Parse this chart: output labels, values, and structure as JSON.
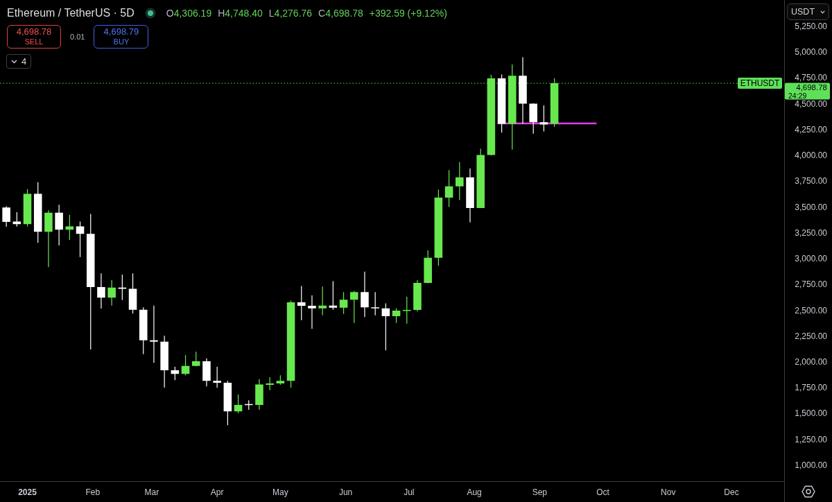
{
  "chart_data": {
    "type": "candlestick",
    "title": "Ethereum / TetherUS · 5D",
    "x": [
      "2024-12-22",
      "2024-12-27",
      "2025-01-01",
      "2025-01-06",
      "2025-01-11",
      "2025-01-16",
      "2025-01-21",
      "2025-01-26",
      "2025-01-31",
      "2025-02-05",
      "2025-02-10",
      "2025-02-15",
      "2025-02-20",
      "2025-02-25",
      "2025-03-02",
      "2025-03-07",
      "2025-03-12",
      "2025-03-17",
      "2025-03-22",
      "2025-03-27",
      "2025-04-01",
      "2025-04-06",
      "2025-04-11",
      "2025-04-16",
      "2025-04-21",
      "2025-04-26",
      "2025-05-01",
      "2025-05-06",
      "2025-05-11",
      "2025-05-16",
      "2025-05-21",
      "2025-05-26",
      "2025-05-31",
      "2025-06-05",
      "2025-06-10",
      "2025-06-15",
      "2025-06-20",
      "2025-06-25",
      "2025-06-30",
      "2025-07-05",
      "2025-07-10",
      "2025-07-15",
      "2025-07-20",
      "2025-07-25",
      "2025-07-30",
      "2025-08-04",
      "2025-08-09",
      "2025-08-14",
      "2025-08-19",
      "2025-08-24",
      "2025-08-29",
      "2025-09-03",
      "2025-09-08"
    ],
    "ohlc": [
      [
        3495,
        3508,
        3309,
        3356
      ],
      [
        3360,
        3450,
        3311,
        3334
      ],
      [
        3334,
        3673,
        3311,
        3629
      ],
      [
        3629,
        3740,
        3154,
        3260
      ],
      [
        3260,
        3468,
        2919,
        3445
      ],
      [
        3445,
        3523,
        3128,
        3280
      ],
      [
        3280,
        3423,
        3181,
        3313
      ],
      [
        3313,
        3360,
        3016,
        3240
      ],
      [
        3240,
        3434,
        2121,
        2725
      ],
      [
        2725,
        2857,
        2517,
        2622
      ],
      [
        2622,
        2792,
        2546,
        2720
      ],
      [
        2720,
        2846,
        2599,
        2709
      ],
      [
        2709,
        2857,
        2468,
        2505
      ],
      [
        2505,
        2528,
        2076,
        2210
      ],
      [
        2210,
        2546,
        1991,
        2197
      ],
      [
        2197,
        2253,
        1752,
        1919
      ],
      [
        1919,
        1953,
        1823,
        1884
      ],
      [
        1884,
        2065,
        1870,
        1962
      ],
      [
        1962,
        2099,
        1958,
        2007
      ],
      [
        2007,
        2036,
        1763,
        1817
      ],
      [
        1817,
        1953,
        1750,
        1799
      ],
      [
        1799,
        1817,
        1387,
        1521
      ],
      [
        1521,
        1685,
        1503,
        1584
      ],
      [
        1592,
        1629,
        1537,
        1583
      ],
      [
        1583,
        1834,
        1537,
        1781
      ],
      [
        1778,
        1852,
        1727,
        1792
      ],
      [
        1792,
        1870,
        1779,
        1817
      ],
      [
        1817,
        2595,
        1750,
        2577
      ],
      [
        2577,
        2736,
        2405,
        2544
      ],
      [
        2544,
        2644,
        2320,
        2519
      ],
      [
        2519,
        2730,
        2452,
        2546
      ],
      [
        2546,
        2783,
        2505,
        2526
      ],
      [
        2526,
        2676,
        2465,
        2602
      ],
      [
        2602,
        2689,
        2378,
        2676
      ],
      [
        2676,
        2874,
        2434,
        2528
      ],
      [
        2528,
        2676,
        2452,
        2519
      ],
      [
        2519,
        2568,
        2112,
        2443
      ],
      [
        2443,
        2521,
        2378,
        2497
      ],
      [
        2495,
        2631,
        2371,
        2503
      ],
      [
        2503,
        2792,
        2488,
        2765
      ],
      [
        2765,
        3081,
        2760,
        3009
      ],
      [
        3009,
        3669,
        2931,
        3591
      ],
      [
        3591,
        3859,
        3501,
        3700
      ],
      [
        3700,
        3935,
        3568,
        3787
      ],
      [
        3787,
        3874,
        3351,
        3490
      ],
      [
        3490,
        4065,
        3490,
        4005
      ],
      [
        4005,
        4781,
        4000,
        4747
      ],
      [
        4747,
        4783,
        4221,
        4307
      ],
      [
        4307,
        4881,
        4056,
        4772
      ],
      [
        4772,
        4951,
        4307,
        4501
      ],
      [
        4501,
        4505,
        4210,
        4322
      ],
      [
        4322,
        4485,
        4233,
        4300
      ],
      [
        4306.19,
        4748.4,
        4276.76,
        4698.78
      ]
    ],
    "colors": [
      "#ffffff",
      "#ffffff",
      "#68e84f",
      "#ffffff",
      "#68e84f",
      "#ffffff",
      "#68e84f",
      "#ffffff",
      "#ffffff",
      "#ffffff",
      "#68e84f",
      "#ffffff",
      "#ffffff",
      "#ffffff",
      "#ffffff",
      "#ffffff",
      "#ffffff",
      "#68e84f",
      "#68e84f",
      "#ffffff",
      "#ffffff",
      "#ffffff",
      "#68e84f",
      "#ffffff",
      "#68e84f",
      "#68e84f",
      "#68e84f",
      "#68e84f",
      "#ffffff",
      "#ffffff",
      "#68e84f",
      "#ffffff",
      "#68e84f",
      "#68e84f",
      "#ffffff",
      "#ffffff",
      "#ffffff",
      "#68e84f",
      "#68e84f",
      "#68e84f",
      "#68e84f",
      "#68e84f",
      "#68e84f",
      "#68e84f",
      "#ffffff",
      "#68e84f",
      "#68e84f",
      "#ffffff",
      "#68e84f",
      "#ffffff",
      "#ffffff",
      "#ffffff",
      "#68e84f"
    ],
    "series": [
      {
        "type": "line",
        "x": [
          "2025-08-12",
          "2025-09-28"
        ],
        "values": [
          4310,
          4310
        ],
        "color": "#e03ee6"
      }
    ],
    "xlim": [
      "2024-12-19",
      "2025-12-26"
    ],
    "xticks": [
      {
        "value": "2025-01-01",
        "label": "2025"
      },
      {
        "value": "2025-02-01",
        "label": "Feb"
      },
      {
        "value": "2025-03-01",
        "label": "Mar"
      },
      {
        "value": "2025-04-01",
        "label": "Apr"
      },
      {
        "value": "2025-05-01",
        "label": "May"
      },
      {
        "value": "2025-06-01",
        "label": "Jun"
      },
      {
        "value": "2025-07-01",
        "label": "Jul"
      },
      {
        "value": "2025-08-01",
        "label": "Aug"
      },
      {
        "value": "2025-09-01",
        "label": "Sep"
      },
      {
        "value": "2025-10-01",
        "label": "Oct"
      },
      {
        "value": "2025-11-01",
        "label": "Nov"
      },
      {
        "value": "2025-12-01",
        "label": "Dec"
      }
    ],
    "ylim": [
      845,
      5505
    ],
    "yticks": [
      {
        "value": 1000,
        "label": "1,000.00"
      },
      {
        "value": 1250,
        "label": "1,250.00"
      },
      {
        "value": 1500,
        "label": "1,500.00"
      },
      {
        "value": 1750,
        "label": "1,750.00"
      },
      {
        "value": 2000,
        "label": "2,000.00"
      },
      {
        "value": 2250,
        "label": "2,250.00"
      },
      {
        "value": 2500,
        "label": "2,500.00"
      },
      {
        "value": 2750,
        "label": "2,750.00"
      },
      {
        "value": 3000,
        "label": "3,000.00"
      },
      {
        "value": 3250,
        "label": "3,250.00"
      },
      {
        "value": 3500,
        "label": "3,500.00"
      },
      {
        "value": 3750,
        "label": "3,750.00"
      },
      {
        "value": 4000,
        "label": "4,000.00"
      },
      {
        "value": 4250,
        "label": "4,250.00"
      },
      {
        "value": 4500,
        "label": "4,500.00"
      },
      {
        "value": 4750,
        "label": "4,750.00"
      },
      {
        "value": 5000,
        "label": "5,000.00"
      },
      {
        "value": 5250,
        "label": "5,250.00"
      }
    ],
    "ref_lines": [
      {
        "axis": "y",
        "value": 4698.78,
        "label": "ETHUSDT",
        "color": "#5fe05a",
        "line_style": "dotted"
      }
    ],
    "annotations": [
      "O4,306.19",
      "H4,748.40",
      "L4,276.76",
      "C4,698.78",
      "+392.59 (+9.12%)",
      "4,698.78",
      "SELL",
      "0.01",
      "4,698.79",
      "BUY",
      "4",
      "USDT",
      "24:29"
    ]
  }
}
